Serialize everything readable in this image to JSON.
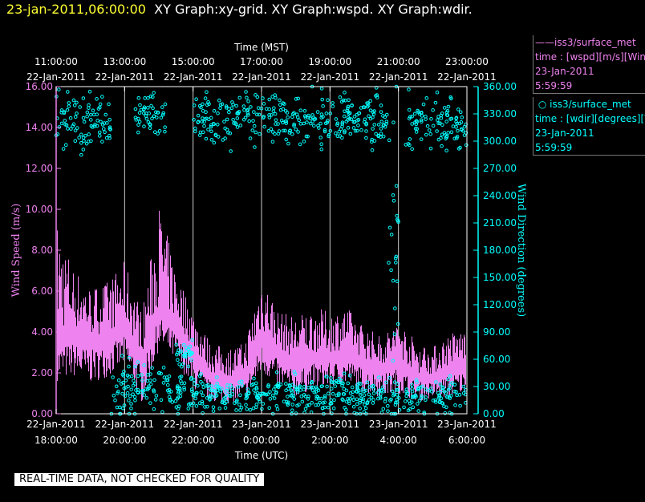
{
  "title": {
    "timestamp": "23-jan-2011,06:00:00",
    "graphs": "XY Graph:xy-grid.  XY Graph:wspd.  XY Graph:wdir."
  },
  "top_axis": {
    "label": "Time (MST)",
    "ticks": [
      {
        "time": "11:00:00",
        "date": "22-Jan-2011"
      },
      {
        "time": "13:00:00",
        "date": "22-Jan-2011"
      },
      {
        "time": "15:00:00",
        "date": "22-Jan-2011"
      },
      {
        "time": "17:00:00",
        "date": "22-Jan-2011"
      },
      {
        "time": "19:00:00",
        "date": "22-Jan-2011"
      },
      {
        "time": "21:00:00",
        "date": "22-Jan-2011"
      },
      {
        "time": "23:00:00",
        "date": "22-Jan-2011"
      }
    ]
  },
  "bottom_axis": {
    "label": "Time (UTC)",
    "ticks": [
      {
        "date": "22-Jan-2011",
        "time": "18:00:00"
      },
      {
        "date": "22-Jan-2011",
        "time": "20:00:00"
      },
      {
        "date": "22-Jan-2011",
        "time": "22:00:00"
      },
      {
        "date": "23-Jan-2011",
        "time": "0:00:00"
      },
      {
        "date": "23-Jan-2011",
        "time": "2:00:00"
      },
      {
        "date": "23-Jan-2011",
        "time": "4:00:00"
      },
      {
        "date": "23-Jan-2011",
        "time": "6:00:00"
      }
    ]
  },
  "legend": {
    "series1": {
      "line1": "iss3/surface_met",
      "line2": "time : [wspd][m/s][Wind",
      "line3": "23-Jan-2011",
      "line4": "5:59:59"
    },
    "series2": {
      "line1": "iss3/surface_met",
      "line2": "time : [wdir][degrees][V",
      "line3": "23-Jan-2011",
      "line4": "5:59:59"
    }
  },
  "quality_note": "REAL-TIME DATA, NOT CHECKED FOR QUALITY",
  "colors": {
    "wspd": "#ee82ee",
    "wdir": "#00ffff",
    "title_timestamp": "#ffff33",
    "grid": "#cccccc"
  },
  "chart_data": {
    "type": "line",
    "x_unit": "hours UTC",
    "xlim": [
      "2011-01-22T18:00:00Z",
      "2011-01-23T06:00:00Z"
    ],
    "x_ticks_hours": [
      18,
      20,
      22,
      24,
      26,
      28,
      30
    ],
    "xlabel_bottom": "Time (UTC)",
    "xlabel_top": "Time (MST)",
    "y_left": {
      "label": "Wind Speed (m/s)",
      "ylim": [
        0,
        16
      ],
      "ticks": [
        "0.00",
        "2.00",
        "4.00",
        "6.00",
        "8.00",
        "10.00",
        "12.00",
        "14.00",
        "16.00"
      ]
    },
    "y_right": {
      "label": "Wind Direction (degrees)",
      "ylim": [
        0,
        360
      ],
      "ticks": [
        "0.00",
        "30.00",
        "60.00",
        "90.00",
        "120.00",
        "150.00",
        "180.00",
        "210.00",
        "240.00",
        "270.00",
        "300.00",
        "330.00",
        "360.00"
      ]
    },
    "grid": "vertical lines at x ticks",
    "series": [
      {
        "name": "iss3/surface_met time : [wspd][m/s]",
        "style": "line (band min-max per interval)",
        "x": [
          18,
          18.5,
          19,
          19.5,
          20,
          20.5,
          21,
          21.5,
          22,
          22.5,
          23,
          23.5,
          24,
          24.5,
          25,
          25.5,
          26,
          26.5,
          27,
          27.5,
          28,
          28.5,
          29,
          29.5,
          30
        ],
        "mean": [
          4.0,
          4.2,
          3.8,
          4.0,
          4.4,
          3.0,
          5.4,
          4.5,
          3.2,
          2.0,
          1.8,
          2.0,
          4.0,
          3.2,
          2.6,
          3.0,
          3.0,
          3.2,
          2.7,
          2.4,
          2.8,
          2.0,
          1.9,
          2.4,
          2.6
        ],
        "min": [
          1.6,
          1.8,
          1.5,
          1.8,
          2.4,
          0.5,
          3.2,
          2.5,
          1.2,
          0.6,
          0.5,
          0.6,
          2.0,
          1.2,
          0.8,
          1.2,
          1.3,
          1.4,
          1.0,
          0.8,
          1.0,
          0.6,
          0.7,
          0.8,
          1.0
        ],
        "max": [
          9.5,
          7.2,
          6.2,
          6.5,
          7.5,
          5.0,
          10.3,
          7.0,
          5.0,
          3.5,
          3.2,
          3.5,
          6.8,
          5.0,
          4.8,
          5.2,
          5.0,
          5.2,
          4.3,
          3.8,
          4.6,
          3.6,
          3.3,
          4.0,
          4.2
        ]
      },
      {
        "name": "iss3/surface_met time : [wdir][degrees]",
        "style": "scatter (circles)",
        "x": [
          18,
          18.5,
          19,
          19.5,
          20,
          20.5,
          21,
          21.5,
          22,
          22.5,
          23,
          23.5,
          24,
          24.5,
          25,
          25.5,
          26,
          26.5,
          27,
          27.5,
          28,
          28.5,
          29,
          29.5,
          30
        ],
        "clusters": [
          {
            "x_from": 18.0,
            "x_to": 19.6,
            "center": 320,
            "spread": 30
          },
          {
            "x_from": 19.6,
            "x_to": 22.0,
            "center": 25,
            "spread": 30
          },
          {
            "x_from": 20.3,
            "x_to": 21.2,
            "center": 330,
            "spread": 20
          },
          {
            "x_from": 21.5,
            "x_to": 22.0,
            "center": 70,
            "spread": 15
          },
          {
            "x_from": 22.0,
            "x_to": 27.7,
            "center": 325,
            "spread": 28
          },
          {
            "x_from": 22.0,
            "x_to": 30.0,
            "center": 20,
            "spread": 20
          },
          {
            "x_from": 27.7,
            "x_to": 28.0,
            "center": 140,
            "spread": 200
          },
          {
            "x_from": 28.2,
            "x_to": 30.0,
            "center": 320,
            "spread": 30
          }
        ]
      }
    ]
  }
}
